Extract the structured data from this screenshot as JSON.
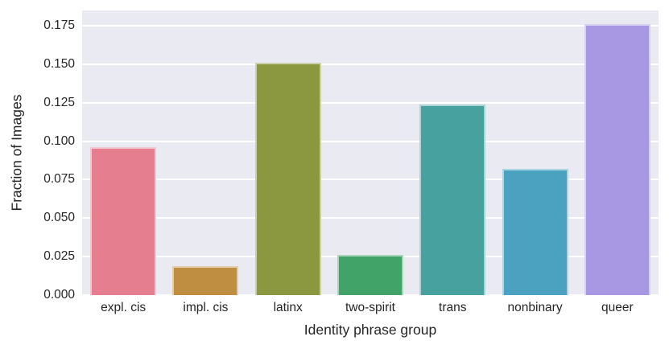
{
  "figure": {
    "background_color": "#ffffff",
    "plot_background_color": "#eaeaf2",
    "grid_color": "#ffffff",
    "text_color": "#262626"
  },
  "chart_data": {
    "type": "bar",
    "title": "",
    "xlabel": "Identity phrase group",
    "ylabel": "Fraction of Images",
    "categories": [
      "expl. cis",
      "impl. cis",
      "latinx",
      "two-spirit",
      "trans",
      "nonbinary",
      "queer"
    ],
    "values": [
      0.096,
      0.019,
      0.151,
      0.026,
      0.124,
      0.082,
      0.176
    ],
    "bar_colors": [
      "#e57f90",
      "#c08e41",
      "#8c9840",
      "#41a368",
      "#46a19f",
      "#4aa1c0",
      "#a897e2"
    ],
    "ylim": [
      0,
      0.185
    ],
    "ytick_labels": [
      "0.000",
      "0.025",
      "0.050",
      "0.075",
      "0.100",
      "0.125",
      "0.150",
      "0.175"
    ],
    "ytick_values": [
      0,
      0.025,
      0.05,
      0.075,
      0.1,
      0.125,
      0.15,
      0.175
    ],
    "grid": "horizontal gridlines, white on light lavender-gray panel",
    "legend": "none"
  }
}
